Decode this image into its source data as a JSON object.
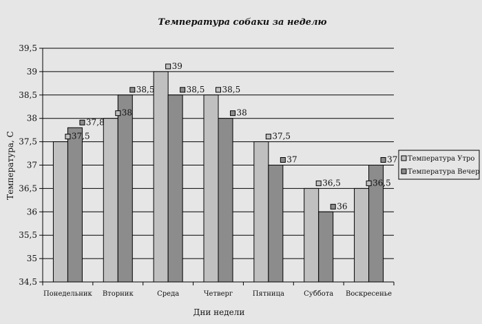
{
  "chart_data": {
    "type": "bar",
    "title": "Температура собаки за неделю",
    "xlabel": "Дни недели",
    "ylabel": "Температура, С",
    "ylim": [
      34.5,
      39.5
    ],
    "ytick_step": 0.5,
    "ytick_labels": [
      "34,5",
      "35",
      "35,5",
      "36",
      "36,5",
      "37",
      "37,5",
      "38",
      "38,5",
      "39",
      "39,5"
    ],
    "grid": true,
    "legend_position": "right",
    "categories": [
      "Понедельник",
      "Вторник",
      "Среда",
      "Четверг",
      "Пятница",
      "Суббота",
      "Воскресенье"
    ],
    "series": [
      {
        "name": "Температура Утро",
        "color": "#c0c0c0",
        "values": [
          37.5,
          38,
          39,
          38.5,
          37.5,
          36.5,
          36.5
        ],
        "labels": [
          "37,5",
          "38",
          "39",
          "38,5",
          "37,5",
          "36,5",
          "36,5"
        ]
      },
      {
        "name": "Температура Вечер",
        "color": "#8c8c8c",
        "values": [
          37.8,
          38.5,
          38.5,
          38,
          37,
          36,
          37
        ],
        "labels": [
          "37,8",
          "38,5",
          "38,5",
          "38",
          "37",
          "36",
          "37"
        ]
      }
    ]
  }
}
